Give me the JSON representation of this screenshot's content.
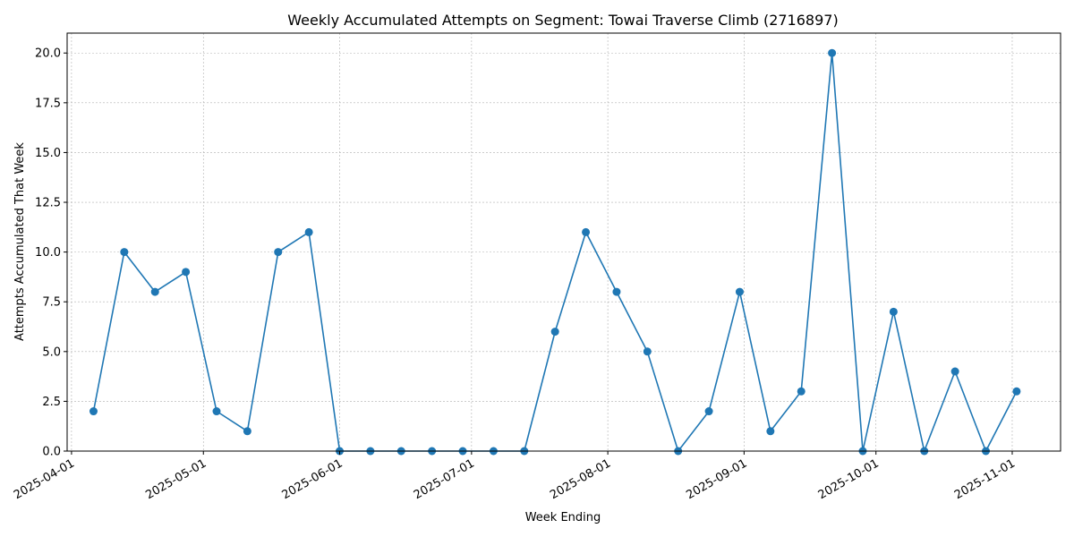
{
  "chart_data": {
    "type": "line",
    "title": "Weekly Accumulated Attempts on Segment: Towai Traverse Climb (2716897)",
    "xlabel": "Week Ending",
    "ylabel": "Attempts Accumulated That Week",
    "x_type": "date",
    "xlim": [
      "2025-03-31",
      "2025-11-12"
    ],
    "ylim": [
      0,
      21
    ],
    "x_ticks": [
      "2025-04-01",
      "2025-05-01",
      "2025-06-01",
      "2025-07-01",
      "2025-08-01",
      "2025-09-01",
      "2025-10-01",
      "2025-11-01"
    ],
    "y_ticks": [
      "0.0",
      "2.5",
      "5.0",
      "7.5",
      "10.0",
      "12.5",
      "15.0",
      "17.5",
      "20.0"
    ],
    "grid": true,
    "color": "#1f77b4",
    "series": [
      {
        "x": [
          "2025-04-06",
          "2025-04-13",
          "2025-04-20",
          "2025-04-27",
          "2025-05-04",
          "2025-05-11",
          "2025-05-18",
          "2025-05-25",
          "2025-06-01",
          "2025-06-08",
          "2025-06-15",
          "2025-06-22",
          "2025-06-29",
          "2025-07-06",
          "2025-07-13",
          "2025-07-20",
          "2025-07-27",
          "2025-08-03",
          "2025-08-10",
          "2025-08-17",
          "2025-08-24",
          "2025-08-31",
          "2025-09-07",
          "2025-09-14",
          "2025-09-21",
          "2025-09-28",
          "2025-10-05",
          "2025-10-12",
          "2025-10-19",
          "2025-10-26",
          "2025-11-02"
        ],
        "values": [
          2,
          10,
          8,
          9,
          2,
          1,
          10,
          11,
          0,
          0,
          0,
          0,
          0,
          0,
          0,
          6,
          11,
          8,
          5,
          0,
          2,
          8,
          1,
          3,
          20,
          0,
          7,
          0,
          4,
          0,
          3
        ]
      }
    ]
  }
}
